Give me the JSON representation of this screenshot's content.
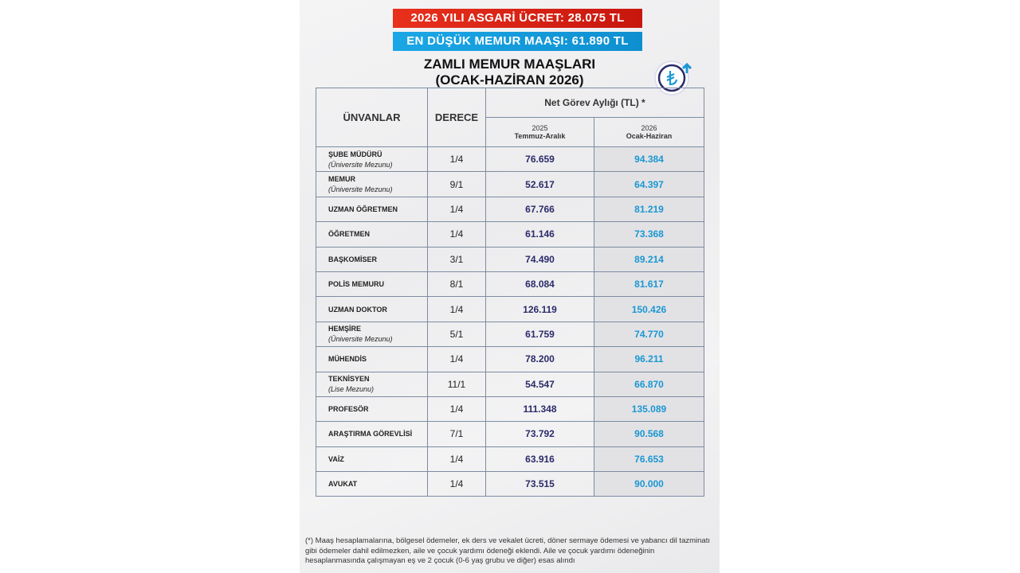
{
  "banners": [
    "2026 YILI ASGARİ ÜCRET: 28.075 TL",
    "EN DÜŞÜK MEMUR MAAŞI: 61.890 TL"
  ],
  "title": [
    "ZAMLI MEMUR MAAŞLARI",
    "(OCAK-HAZİRAN 2026)"
  ],
  "table": {
    "headers": {
      "title": "ÜNVANLAR",
      "grade": "DERECE",
      "group": "Net Görev Aylığı (TL) *",
      "col2025": {
        "year": "2025",
        "period": "Temmuz-Aralık"
      },
      "col2026": {
        "year": "2026",
        "period": "Ocak-Haziran"
      }
    },
    "rows": [
      {
        "title": "ŞUBE MÜDÜRÜ",
        "note": "(Üniversite Mezunu)",
        "grade": "1/4",
        "v2025": "76.659",
        "v2026": "94.384"
      },
      {
        "title": "MEMUR",
        "note": "(Üniversite Mezunu)",
        "grade": "9/1",
        "v2025": "52.617",
        "v2026": "64.397"
      },
      {
        "title": "UZMAN ÖĞRETMEN",
        "grade": "1/4",
        "v2025": "67.766",
        "v2026": "81.219"
      },
      {
        "title": "ÖĞRETMEN",
        "grade": "1/4",
        "v2025": "61.146",
        "v2026": "73.368"
      },
      {
        "title": "BAŞKOMİSER",
        "grade": "3/1",
        "v2025": "74.490",
        "v2026": "89.214"
      },
      {
        "title": "POLİS MEMURU",
        "grade": "8/1",
        "v2025": "68.084",
        "v2026": "81.617"
      },
      {
        "title": "UZMAN DOKTOR",
        "grade": "1/4",
        "v2025": "126.119",
        "v2026": "150.426"
      },
      {
        "title": "HEMŞİRE",
        "note": "(Üniversite Mezunu)",
        "grade": "5/1",
        "v2025": "61.759",
        "v2026": "74.770"
      },
      {
        "title": "MÜHENDİS",
        "grade": "1/4",
        "v2025": "78.200",
        "v2026": "96.211"
      },
      {
        "title": "TEKNİSYEN",
        "note": "(Lise Mezunu)",
        "grade": "11/1",
        "v2025": "54.547",
        "v2026": "66.870"
      },
      {
        "title": "PROFESÖR",
        "grade": "1/4",
        "v2025": "111.348",
        "v2026": "135.089"
      },
      {
        "title": "ARAŞTIRMA GÖREVLİSİ",
        "grade": "7/1",
        "v2025": "73.792",
        "v2026": "90.568"
      },
      {
        "title": "VAİZ",
        "grade": "1/4",
        "v2025": "63.916",
        "v2026": "76.653"
      },
      {
        "title": "AVUKAT",
        "grade": "1/4",
        "v2025": "73.515",
        "v2026": "90.000"
      }
    ]
  },
  "footnote": "(*) Maaş hesaplamalarına, bölgesel ödemeler, ek ders ve vekalet ücreti, döner sermaye ödemesi ve yabancı dil tazminatı gibi ödemeler dahil edilmezken, aile ve çocuk yardımı ödeneği eklendi. Aile ve çocuk yardımı ödeneğinin hesaplanmasında çalışmayan eş ve 2 çocuk (0-6 yaş grubu ve diğer) esas alındı"
}
